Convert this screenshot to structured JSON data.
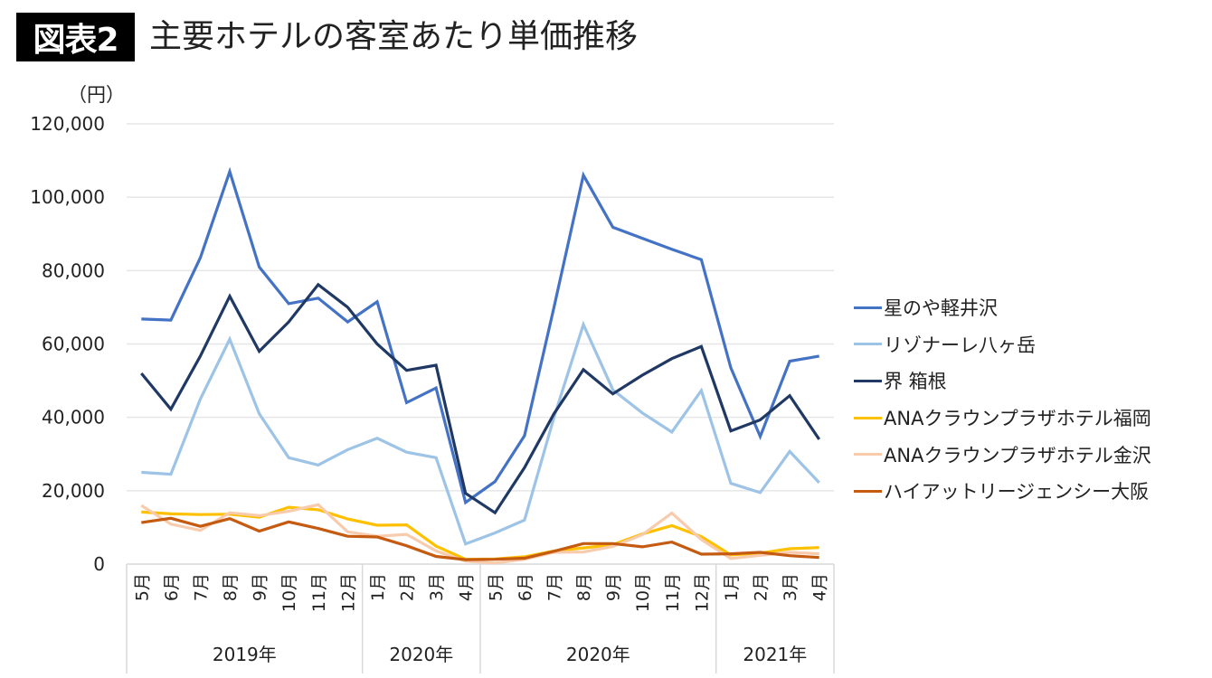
{
  "header": {
    "badge": "図表2",
    "title": "主要ホテルの客室あたり単価推移"
  },
  "chart_data": {
    "type": "line",
    "title": "主要ホテルの客室あたり単価推移",
    "ylabel": "（円）",
    "xlabel": "",
    "ylim": [
      0,
      120000
    ],
    "yticks": [
      0,
      20000,
      40000,
      60000,
      80000,
      100000,
      120000
    ],
    "ytick_labels": [
      "0",
      "20,000",
      "40,000",
      "60,000",
      "80,000",
      "100,000",
      "120,000"
    ],
    "grid": true,
    "legend_position": "right",
    "categories": [
      "5月",
      "6月",
      "7月",
      "8月",
      "9月",
      "10月",
      "11月",
      "12月",
      "1月",
      "2月",
      "3月",
      "4月",
      "5月",
      "6月",
      "7月",
      "8月",
      "9月",
      "10月",
      "11月",
      "12月",
      "1月",
      "2月",
      "3月",
      "4月"
    ],
    "year_groups": [
      {
        "label": "2019年",
        "count": 8
      },
      {
        "label": "2020年",
        "count": 4
      },
      {
        "label": "2020年",
        "count": 8
      },
      {
        "label": "2021年",
        "count": 4
      }
    ],
    "series": [
      {
        "name": "星のや軽井沢",
        "color": "#4472C4",
        "values": [
          66800,
          66500,
          83500,
          107000,
          81000,
          71000,
          72500,
          66000,
          71500,
          44000,
          48000,
          16800,
          22500,
          35000,
          70000,
          106000,
          91800,
          88800,
          85800,
          83000,
          53500,
          34800,
          55300,
          56700
        ]
      },
      {
        "name": "リゾナーレ八ヶ岳",
        "color": "#9DC3E6",
        "values": [
          25000,
          24500,
          45000,
          61300,
          41000,
          29000,
          27000,
          31200,
          34300,
          30500,
          29000,
          5500,
          8500,
          12000,
          40000,
          65300,
          47500,
          41200,
          36000,
          47300,
          22000,
          19500,
          30700,
          22200
        ]
      },
      {
        "name": "界 箱根",
        "color": "#1F3864",
        "values": [
          52000,
          42200,
          56700,
          73000,
          58000,
          66000,
          76200,
          70000,
          60000,
          52800,
          54200,
          19300,
          14000,
          26300,
          41000,
          53000,
          46400,
          51500,
          56000,
          59300,
          36300,
          39300,
          45900,
          34000
        ]
      },
      {
        "name": "ANAクラウンプラザホテル福岡",
        "color": "#FFC000",
        "values": [
          14200,
          13700,
          13500,
          13600,
          12800,
          15500,
          14800,
          12300,
          10600,
          10700,
          4900,
          1300,
          1400,
          2000,
          3600,
          4400,
          5300,
          8200,
          10500,
          7500,
          2500,
          3000,
          4200,
          4500
        ]
      },
      {
        "name": "ANAクラウンプラザホテル金沢",
        "color": "#F8CBAD",
        "values": [
          16000,
          10900,
          9200,
          14000,
          13200,
          14400,
          16200,
          8800,
          7600,
          8100,
          3600,
          800,
          300,
          1300,
          3200,
          3300,
          4800,
          8000,
          13900,
          6700,
          1500,
          2400,
          3200,
          2800
        ]
      },
      {
        "name": "ハイアットリージェンシー大阪",
        "color": "#C55A11",
        "values": [
          11300,
          12500,
          10300,
          12400,
          9000,
          11500,
          9700,
          7600,
          7400,
          5000,
          2100,
          1200,
          1300,
          1600,
          3500,
          5600,
          5600,
          4700,
          6000,
          2700,
          2800,
          3200,
          2300,
          1800
        ]
      }
    ]
  }
}
